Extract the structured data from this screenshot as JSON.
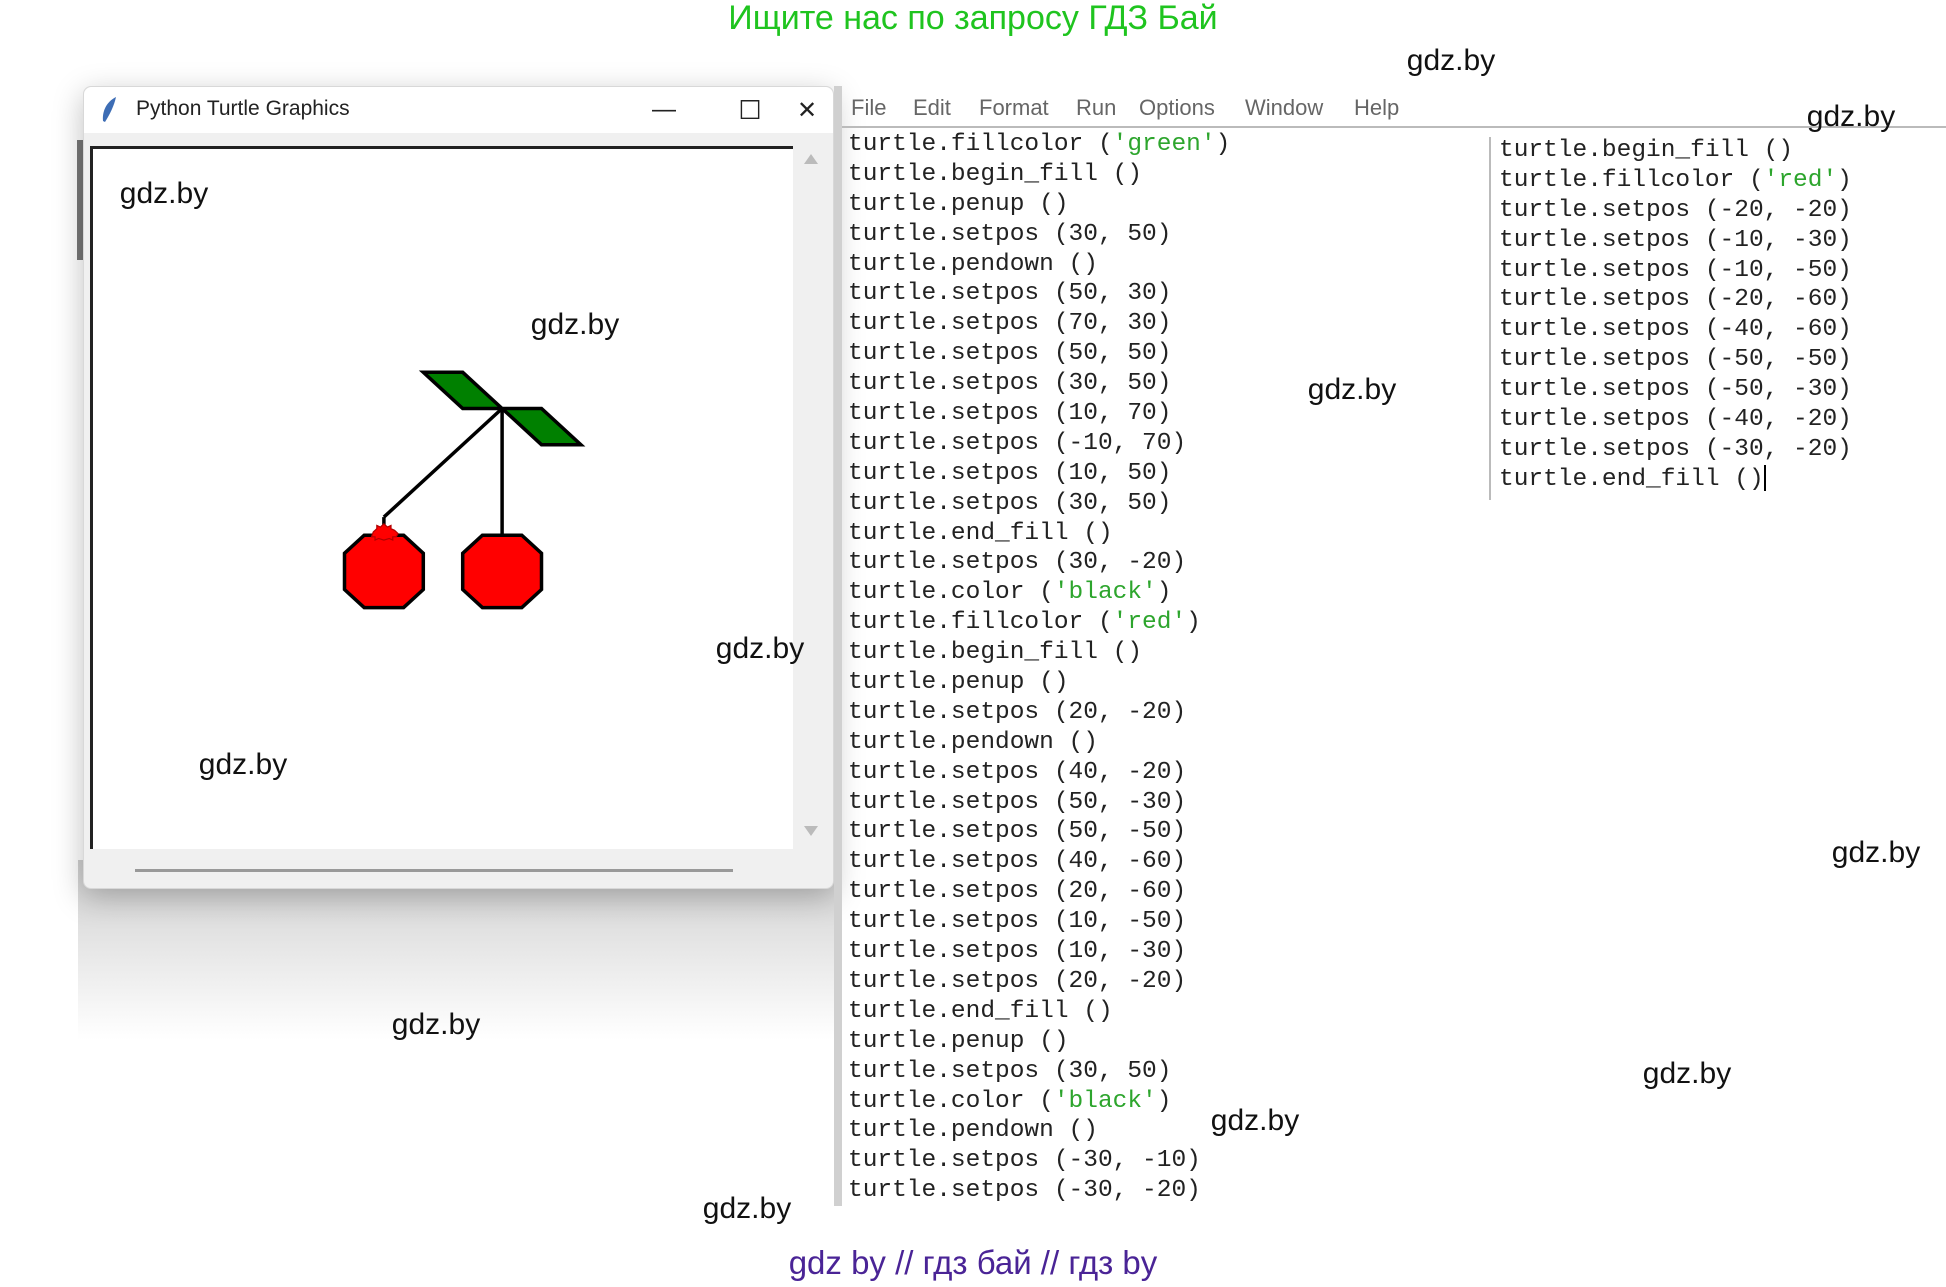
{
  "banner": "Ищите нас по запросу ГДЗ Бай",
  "footer": "gdz by  //  гдз бай  //  гдз by",
  "watermark": "gdz.by",
  "turtle_window": {
    "title": "Python Turtle Graphics",
    "icon": "feather-icon",
    "minimize": "—",
    "maximize": "☐",
    "close": "✕",
    "drawing": {
      "pen_color": "#000000",
      "leaves_fill": "#008000",
      "cherry_fill": "#ff0000",
      "leaves": [
        [
          30,
          50
        ],
        [
          50,
          30
        ],
        [
          70,
          30
        ],
        [
          50,
          50
        ],
        [
          30,
          50
        ],
        [
          10,
          70
        ],
        [
          -10,
          70
        ],
        [
          10,
          50
        ],
        [
          30,
          50
        ]
      ],
      "right_stem": [
        [
          30,
          50
        ],
        [
          30,
          -20
        ]
      ],
      "right_cherry": [
        [
          20,
          -20
        ],
        [
          40,
          -20
        ],
        [
          50,
          -30
        ],
        [
          50,
          -50
        ],
        [
          40,
          -60
        ],
        [
          20,
          -60
        ],
        [
          10,
          -50
        ],
        [
          10,
          -30
        ],
        [
          20,
          -20
        ]
      ],
      "left_stem": [
        [
          30,
          50
        ],
        [
          -30,
          -10
        ]
      ],
      "left_cherry": [
        [
          -20,
          -20
        ],
        [
          -10,
          -30
        ],
        [
          -10,
          -50
        ],
        [
          -20,
          -60
        ],
        [
          -40,
          -60
        ],
        [
          -50,
          -50
        ],
        [
          -50,
          -30
        ],
        [
          -40,
          -20
        ],
        [
          -30,
          -20
        ]
      ],
      "turtle_position": [
        -30,
        -20
      ]
    }
  },
  "idle": {
    "menu": [
      "File",
      "Edit",
      "Format",
      "Run",
      "Options",
      "Window",
      "Help"
    ],
    "code_left": [
      "turtle.fillcolor ('green')",
      "turtle.begin_fill ()",
      "turtle.penup ()",
      "turtle.setpos (30, 50)",
      "turtle.pendown ()",
      "turtle.setpos (50, 30)",
      "turtle.setpos (70, 30)",
      "turtle.setpos (50, 50)",
      "turtle.setpos (30, 50)",
      "turtle.setpos (10, 70)",
      "turtle.setpos (-10, 70)",
      "turtle.setpos (10, 50)",
      "turtle.setpos (30, 50)",
      "turtle.end_fill ()",
      "turtle.setpos (30, -20)",
      "turtle.color ('black')",
      "turtle.fillcolor ('red')",
      "turtle.begin_fill ()",
      "turtle.penup ()",
      "turtle.setpos (20, -20)",
      "turtle.pendown ()",
      "turtle.setpos (40, -20)",
      "turtle.setpos (50, -30)",
      "turtle.setpos (50, -50)",
      "turtle.setpos (40, -60)",
      "turtle.setpos (20, -60)",
      "turtle.setpos (10, -50)",
      "turtle.setpos (10, -30)",
      "turtle.setpos (20, -20)",
      "turtle.end_fill ()",
      "turtle.penup ()",
      "turtle.setpos (30, 50)",
      "turtle.color ('black')",
      "turtle.pendown ()",
      "turtle.setpos (-30, -10)",
      "turtle.setpos (-30, -20)"
    ],
    "code_right": [
      "turtle.begin_fill ()",
      "turtle.fillcolor ('red')",
      "turtle.setpos (-20, -20)",
      "turtle.setpos (-10, -30)",
      "turtle.setpos (-10, -50)",
      "turtle.setpos (-20, -60)",
      "turtle.setpos (-40, -60)",
      "turtle.setpos (-50, -50)",
      "turtle.setpos (-50, -30)",
      "turtle.setpos (-40, -20)",
      "turtle.setpos (-30, -20)",
      "turtle.end_fill ()"
    ]
  }
}
